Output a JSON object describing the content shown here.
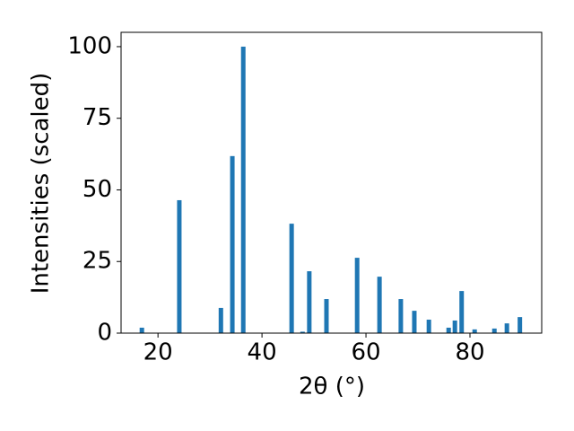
{
  "chart_data": {
    "type": "bar",
    "x_label": "2θ (°)",
    "y_label": "Intensities (scaled)",
    "x": [
      16.9,
      24.1,
      32.1,
      34.3,
      36.4,
      45.7,
      47.8,
      49.1,
      52.4,
      58.3,
      62.6,
      66.7,
      69.3,
      72.1,
      75.9,
      77.1,
      78.4,
      80.9,
      84.7,
      87.1,
      89.6
    ],
    "values": [
      1.9,
      46.4,
      8.8,
      61.8,
      100,
      38.2,
      0.5,
      21.6,
      11.9,
      26.3,
      19.7,
      11.9,
      7.8,
      4.7,
      1.9,
      4.4,
      14.7,
      1.3,
      1.6,
      3.4,
      5.6
    ],
    "color": "#1f77b4",
    "xlim": [
      12.9,
      93.8
    ],
    "xticks": [
      20,
      40,
      60,
      80
    ],
    "ylim": [
      0,
      105
    ],
    "yticks": [
      0,
      25,
      50,
      75,
      100
    ],
    "grid": false
  }
}
